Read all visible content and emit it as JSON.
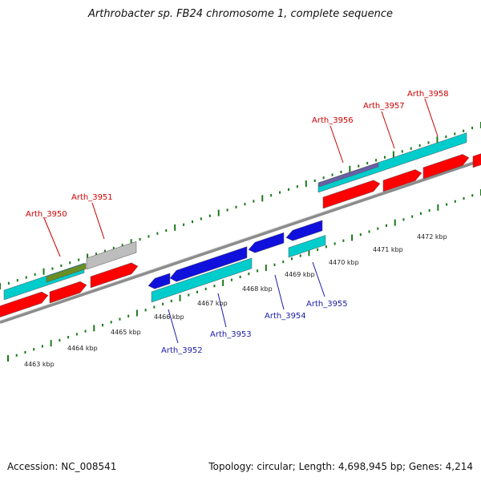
{
  "title": "Arthrobacter sp. FB24 chromosome 1, complete sequence",
  "footer": {
    "accession": "Accession: NC_008541",
    "summary": "Topology: circular; Length: 4,698,945 bp; Genes: 4,214"
  },
  "colors": {
    "backbone": "#8c8c8c",
    "tick_major": "#1a7a1a",
    "tick_minor": "#1a7a1a",
    "red_gene": "#ff0000",
    "cyan_gene": "#00cccc",
    "blue_gene": "#1010dd",
    "gray_gene": "#bdbdbd",
    "olive_gene": "#6b8e23",
    "purple_gene": "#6a5fa8",
    "label_red": "#cc0000",
    "label_blue": "#1a1aaa"
  },
  "kbp_labels": [
    "4463 kbp",
    "4464 kbp",
    "4465 kbp",
    "4466 kbp",
    "4467 kbp",
    "4468 kbp",
    "4469 kbp",
    "4470 kbp",
    "4471 kbp",
    "4472 kbp"
  ],
  "gene_labels_top": [
    "Arth_3950",
    "Arth_3951",
    "Arth_3956",
    "Arth_3957",
    "Arth_3958"
  ],
  "gene_labels_bottom": [
    "Arth_3952",
    "Arth_3953",
    "Arth_3954",
    "Arth_3955"
  ]
}
